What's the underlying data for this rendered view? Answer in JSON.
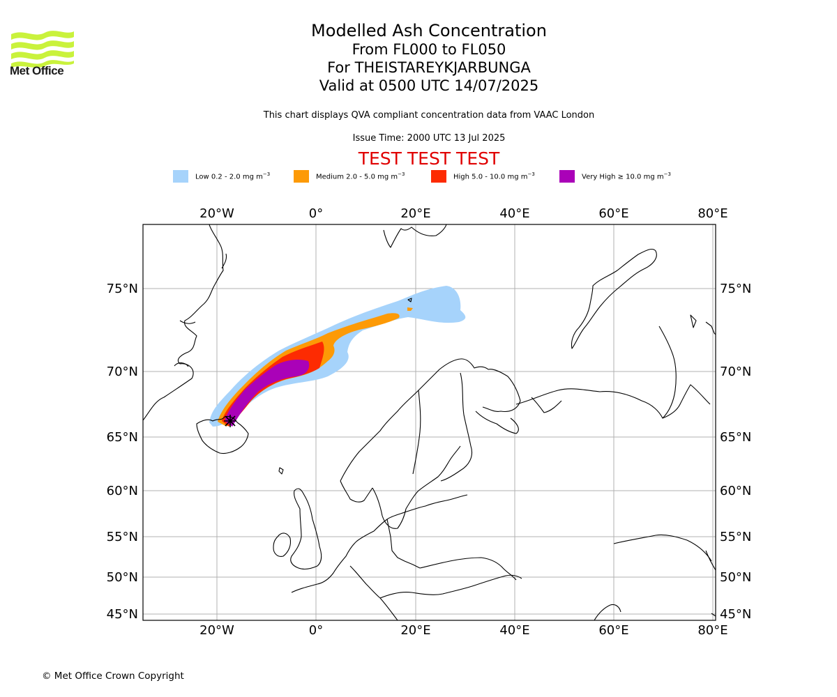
{
  "header": {
    "logo_text": "Met Office",
    "title": "Modelled Ash Concentration",
    "level_range": "From FL000 to FL050",
    "volcano": "For THEISTAREYKJARBUNGA",
    "valid": "Valid at 0500 UTC 14/07/2025",
    "compliance_note": "This chart displays QVA compliant concentration data from VAAC London",
    "issue_time": "Issue Time: 2000 UTC 13 Jul 2025",
    "test_banner": "TEST TEST TEST"
  },
  "legend": [
    {
      "label_main": "Low 0.2 - 2.0 mg m",
      "unit_exp": "−3",
      "color": "#a6d3fb"
    },
    {
      "label_main": "Medium 2.0 - 5.0 mg m",
      "unit_exp": "−3",
      "color": "#fd9a06"
    },
    {
      "label_main": "High 5.0 - 10.0 mg m",
      "unit_exp": "−3",
      "color": "#fd2b02"
    },
    {
      "label_main": "Very High ≥ 10.0 mg m",
      "unit_exp": "−3",
      "color": "#aa02b8"
    }
  ],
  "map": {
    "lon_ticks": [
      "20°W",
      "0°",
      "20°E",
      "40°E",
      "60°E",
      "80°E"
    ],
    "lat_ticks": [
      "75°N",
      "70°N",
      "65°N",
      "60°N",
      "55°N",
      "50°N",
      "45°N"
    ],
    "lon_extent": [
      -35,
      80
    ],
    "lat_extent": [
      44.5,
      78.5
    ],
    "gridlines": true,
    "volcano_marker_lon_lat": [
      -16.8,
      65.9
    ]
  },
  "footer": {
    "copyright": "© Met Office Crown Copyright"
  }
}
